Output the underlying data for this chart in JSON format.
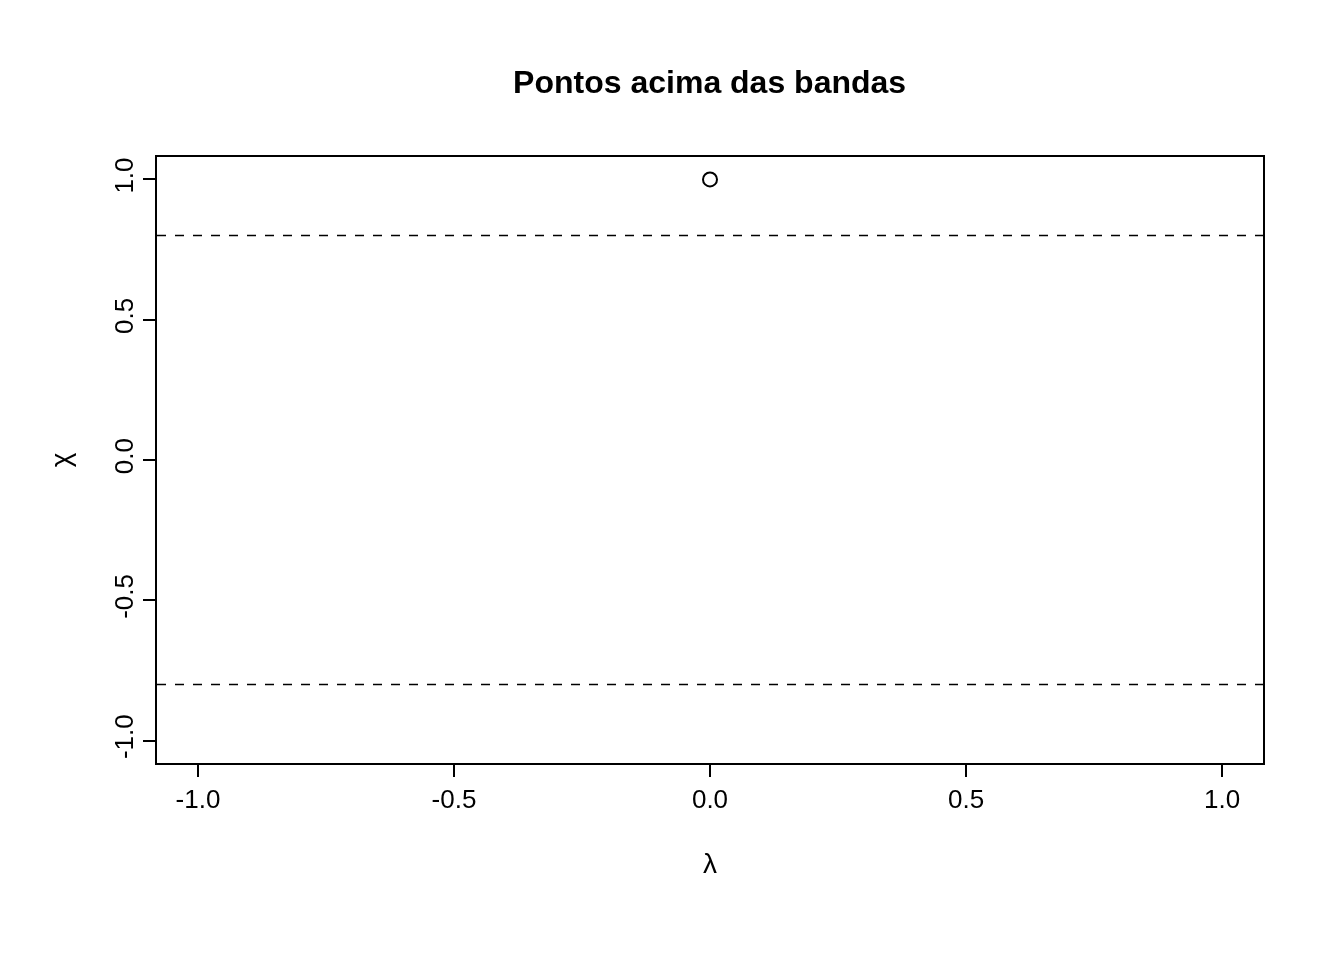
{
  "chart_data": {
    "type": "scatter",
    "title": "Pontos acima das bandas",
    "xlabel": "λ",
    "ylabel": "χ",
    "x": [
      0
    ],
    "values": [
      1
    ],
    "marker": "circle",
    "color": "#000000",
    "xlim": [
      -1.08,
      1.08
    ],
    "xticks": [
      {
        "value": -1,
        "label": "-1.0"
      },
      -0.5,
      {
        "value": 0,
        "label": "0.0"
      },
      0.5,
      {
        "value": 1,
        "label": "1.0"
      }
    ],
    "ylim": [
      -1.08,
      1.08
    ],
    "yticks": [
      {
        "value": -1,
        "label": "-1.0"
      },
      -0.5,
      {
        "value": 0,
        "label": "0.0"
      },
      0.5,
      {
        "value": 1,
        "label": "1.0"
      }
    ],
    "ref_lines": [
      {
        "axis": "y",
        "value": 0.8,
        "color": "#000000",
        "line_style": "dashed"
      },
      {
        "axis": "y",
        "value": -0.8,
        "color": "#000000",
        "line_style": "dashed"
      }
    ],
    "legend": false
  }
}
